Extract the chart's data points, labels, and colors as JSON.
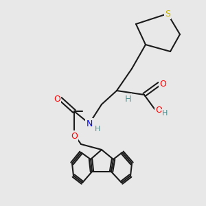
{
  "bg_color": "#e8e8e8",
  "bond_color": "#1a1a1a",
  "bond_width": 1.5,
  "atom_colors": {
    "S": "#c8b400",
    "O": "#ff0000",
    "N": "#0000ff",
    "H": "#4a9090",
    "C": "#1a1a1a"
  },
  "font_size_atom": 9,
  "font_size_H": 8
}
